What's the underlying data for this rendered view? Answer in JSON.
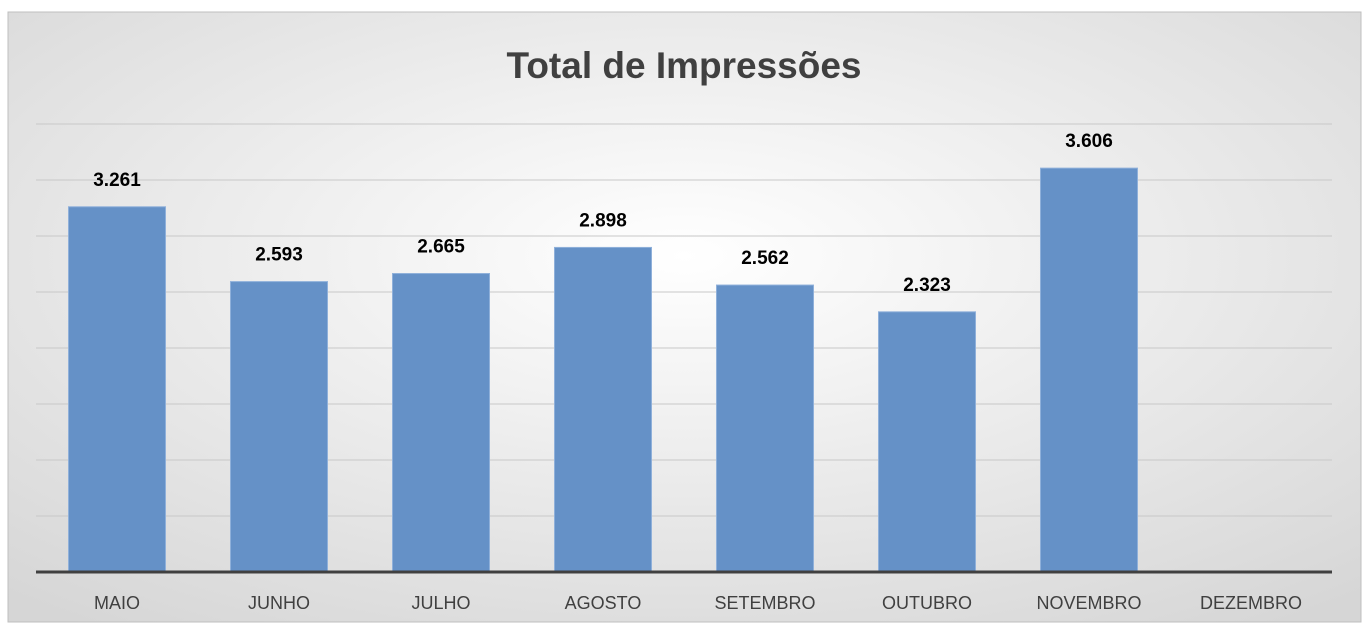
{
  "chart_data": {
    "type": "bar",
    "title": "Total de Impressões",
    "categories": [
      "MAIO",
      "JUNHO",
      "JULHO",
      "AGOSTO",
      "SETEMBRO",
      "OUTUBRO",
      "NOVEMBRO",
      "DEZEMBRO"
    ],
    "values": [
      3261,
      2593,
      2665,
      2898,
      2562,
      2323,
      3606,
      null
    ],
    "value_labels": [
      "3.261",
      "2.593",
      "2.665",
      "2.898",
      "2.562",
      "2.323",
      "3.606",
      null
    ],
    "color": "#6591c7",
    "ylim": [
      0,
      4000
    ],
    "yticks": [
      0,
      500,
      1000,
      1500,
      2000,
      2500,
      3000,
      3500,
      4000
    ],
    "grid": true
  }
}
